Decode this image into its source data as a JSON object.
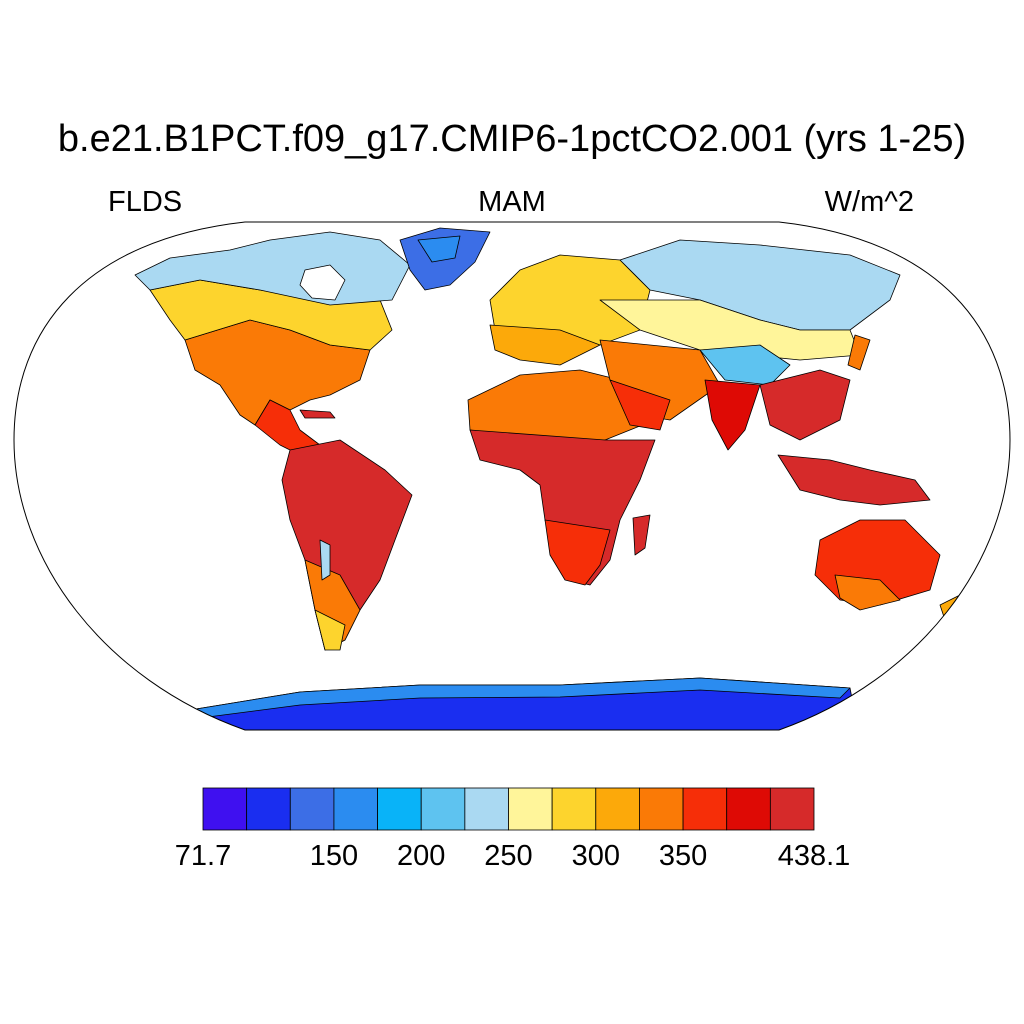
{
  "title": "b.e21.B1PCT.f09_g17.CMIP6-1pctCO2.001 (yrs 1-25)",
  "left_label": "FLDS",
  "center_label": "MAM",
  "right_label": "W/m^2",
  "colorbar": {
    "colors": [
      "#3f10f0",
      "#1a2ef0",
      "#3c6ee6",
      "#2b8cf0",
      "#09b3f8",
      "#5ec3f0",
      "#aad9f2",
      "#fff59a",
      "#fdd42d",
      "#fca90a",
      "#fa7a06",
      "#f62e08",
      "#de0a05",
      "#d62a2a"
    ],
    "tick_labels": [
      {
        "label": "71.7",
        "index": 0
      },
      {
        "label": "150",
        "index": 3
      },
      {
        "label": "200",
        "index": 5
      },
      {
        "label": "250",
        "index": 7
      },
      {
        "label": "300",
        "index": 9
      },
      {
        "label": "350",
        "index": 11
      },
      {
        "label": "438.1",
        "index": 14
      }
    ]
  }
}
